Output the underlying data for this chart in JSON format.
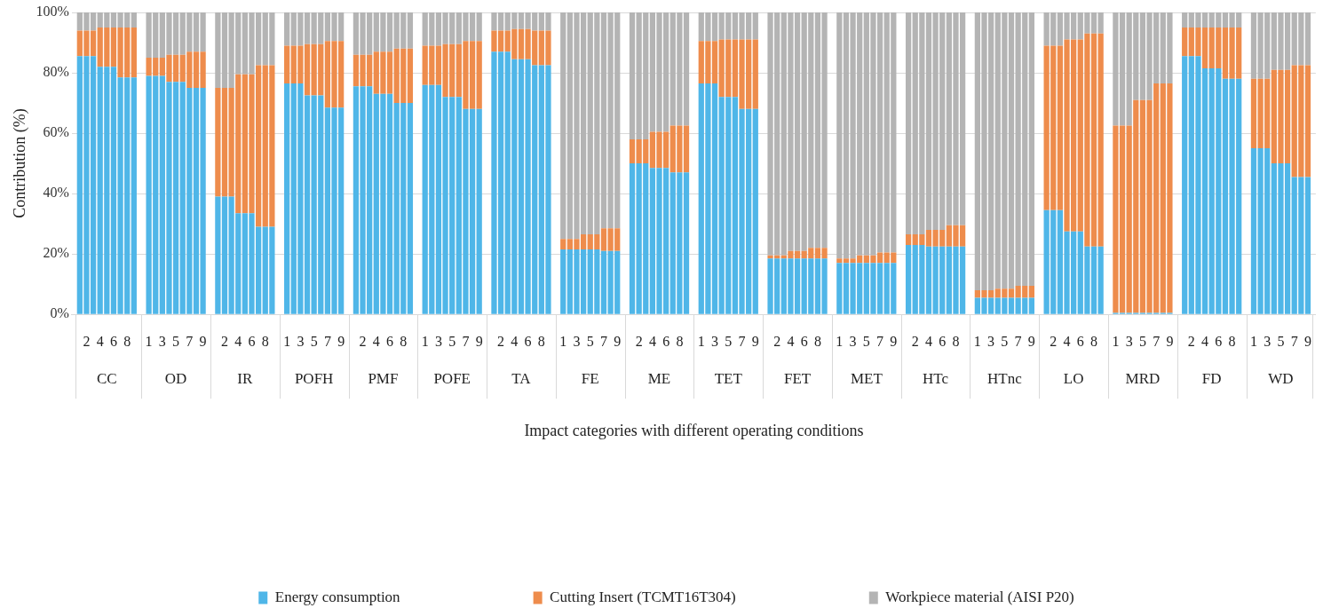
{
  "chart_data": {
    "type": "bar",
    "stacked": true,
    "xlabel": "Impact categories with different operating conditions",
    "ylabel": "Contribution (%)",
    "legend": "bottom",
    "grid": "y",
    "ylim": [
      0,
      100
    ],
    "yticks": [
      {
        "value": 0,
        "label": "0%"
      },
      {
        "value": 20,
        "label": "20%"
      },
      {
        "value": 40,
        "label": "40%"
      },
      {
        "value": 60,
        "label": "60%"
      },
      {
        "value": 80,
        "label": "80%"
      },
      {
        "value": 100,
        "label": "100%"
      }
    ],
    "annotations": [
      "CC",
      "OD",
      "IR",
      "POFH",
      "PMF",
      "POFE",
      "TA",
      "FE",
      "ME",
      "TET",
      "FET",
      "MET",
      "HTc",
      "HTnc",
      "LO",
      "MRD",
      "FD",
      "WD"
    ],
    "categories": [
      null,
      "2",
      null,
      "4",
      null,
      "6",
      null,
      "8",
      null,
      "1",
      null,
      "3",
      null,
      "5",
      null,
      "7",
      null,
      "9",
      null,
      "2",
      null,
      "4",
      null,
      "6",
      null,
      "8",
      null,
      "1",
      null,
      "3",
      null,
      "5",
      null,
      "7",
      null,
      "9",
      null,
      "2",
      null,
      "4",
      null,
      "6",
      null,
      "8",
      null,
      "1",
      null,
      "3",
      null,
      "5",
      null,
      "7",
      null,
      "9",
      null,
      "2",
      null,
      "4",
      null,
      "6",
      null,
      "8",
      null,
      "1",
      null,
      "3",
      null,
      "5",
      null,
      "7",
      null,
      "9",
      null,
      "2",
      null,
      "4",
      null,
      "6",
      null,
      "8",
      null,
      "1",
      null,
      "3",
      null,
      "5",
      null,
      "7",
      null,
      "9",
      null,
      "2",
      null,
      "4",
      null,
      "6",
      null,
      "8",
      null,
      "1",
      null,
      "3",
      null,
      "5",
      null,
      "7",
      null,
      "9",
      null,
      "2",
      null,
      "4",
      null,
      "6",
      null,
      "8",
      null,
      "1",
      null,
      "3",
      null,
      "5",
      null,
      "7",
      null,
      "9",
      null,
      "2",
      null,
      "4",
      null,
      "6",
      null,
      "8",
      null,
      "1",
      null,
      "3",
      null,
      "5",
      null,
      "7",
      null,
      "9",
      null,
      "2",
      null,
      "4",
      null,
      "6",
      null,
      "8",
      null,
      "1",
      null,
      "3",
      null,
      "5",
      null,
      "7",
      null,
      "9"
    ],
    "series": [
      {
        "name": "Energy consumption",
        "color": "#4fb6e8",
        "values": [
          85.5,
          85.5,
          85.5,
          82,
          82,
          82,
          78.5,
          78.5,
          78.5,
          79,
          79,
          79,
          77,
          77,
          77,
          75,
          75,
          75,
          39,
          39,
          39,
          33.5,
          33.5,
          33.5,
          29,
          29,
          29,
          76.5,
          76.5,
          76.5,
          72.5,
          72.5,
          72.5,
          68.5,
          68.5,
          68.5,
          75.5,
          75.5,
          75.5,
          73,
          73,
          73,
          70,
          70,
          70,
          76,
          76,
          76,
          72,
          72,
          72,
          68,
          68,
          68,
          87,
          87,
          87,
          84.5,
          84.5,
          84.5,
          82.5,
          82.5,
          82.5,
          21.5,
          21.5,
          21.5,
          21.5,
          21.5,
          21.5,
          21,
          21,
          21,
          50,
          50,
          50,
          48.5,
          48.5,
          48.5,
          47,
          47,
          47,
          76.5,
          76.5,
          76.5,
          72,
          72,
          72,
          68,
          68,
          68,
          18.5,
          18.5,
          18.5,
          18.5,
          18.5,
          18.5,
          18.5,
          18.5,
          18.5,
          17,
          17,
          17,
          17,
          17,
          17,
          17,
          17,
          17,
          23,
          23,
          23,
          22.5,
          22.5,
          22.5,
          22.5,
          22.5,
          22.5,
          5.5,
          5.5,
          5.5,
          5.5,
          5.5,
          5.5,
          5.5,
          5.5,
          5.5,
          34.5,
          34.5,
          34.5,
          27.5,
          27.5,
          27.5,
          22.5,
          22.5,
          22.5,
          0.5,
          0.5,
          0.5,
          0.5,
          0.5,
          0.5,
          0.5,
          0.5,
          0.5,
          85.5,
          85.5,
          85.5,
          81.5,
          81.5,
          81.5,
          78,
          78,
          78,
          55,
          55,
          55,
          50,
          50,
          50,
          45.5,
          45.5,
          45.5
        ]
      },
      {
        "name": "Cutting Insert (TCMT16T304)",
        "color": "#ee8c4c",
        "values": [
          8.5,
          8.5,
          8.5,
          13,
          13,
          13,
          16.5,
          16.5,
          16.5,
          6,
          6,
          6,
          9,
          9,
          9,
          12,
          12,
          12,
          36,
          36,
          36,
          46,
          46,
          46,
          53.5,
          53.5,
          53.5,
          12.5,
          12.5,
          12.5,
          17,
          17,
          17,
          22,
          22,
          22,
          10.5,
          10.5,
          10.5,
          14,
          14,
          14,
          18,
          18,
          18,
          13,
          13,
          13,
          17.5,
          17.5,
          17.5,
          22.5,
          22.5,
          22.5,
          7,
          7,
          7,
          10,
          10,
          10,
          11.5,
          11.5,
          11.5,
          3.5,
          3.5,
          3.5,
          5,
          5,
          5,
          7.5,
          7.5,
          7.5,
          8,
          8,
          8,
          12,
          12,
          12,
          15.5,
          15.5,
          15.5,
          14,
          14,
          14,
          19,
          19,
          19,
          23,
          23,
          23,
          1,
          1,
          1,
          2.5,
          2.5,
          2.5,
          3.5,
          3.5,
          3.5,
          1.5,
          1.5,
          1.5,
          2.5,
          2.5,
          2.5,
          3.5,
          3.5,
          3.5,
          3.5,
          3.5,
          3.5,
          5.5,
          5.5,
          5.5,
          7,
          7,
          7,
          2.5,
          2.5,
          2.5,
          3,
          3,
          3,
          4,
          4,
          4,
          54.5,
          54.5,
          54.5,
          63.5,
          63.5,
          63.5,
          70.5,
          70.5,
          70.5,
          62,
          62,
          62,
          70.5,
          70.5,
          70.5,
          76,
          76,
          76,
          9.5,
          9.5,
          9.5,
          13.5,
          13.5,
          13.5,
          17,
          17,
          17,
          23,
          23,
          23,
          31,
          31,
          31,
          37,
          37,
          37
        ]
      },
      {
        "name": "Workpiece material (AISI P20)",
        "color": "#b4b4b4",
        "values": [
          6,
          6,
          6,
          5,
          5,
          5,
          5,
          5,
          5,
          15,
          15,
          15,
          14,
          14,
          14,
          13,
          13,
          13,
          25,
          25,
          25,
          20.5,
          20.5,
          20.5,
          17.5,
          17.5,
          17.5,
          11,
          11,
          11,
          10.5,
          10.5,
          10.5,
          9.5,
          9.5,
          9.5,
          14,
          14,
          14,
          13,
          13,
          13,
          12,
          12,
          12,
          11,
          11,
          11,
          10.5,
          10.5,
          10.5,
          9.5,
          9.5,
          9.5,
          6,
          6,
          6,
          5.5,
          5.5,
          5.5,
          6,
          6,
          6,
          75,
          75,
          75,
          73.5,
          73.5,
          73.5,
          71.5,
          71.5,
          71.5,
          42,
          42,
          42,
          39.5,
          39.5,
          39.5,
          37.5,
          37.5,
          37.5,
          9.5,
          9.5,
          9.5,
          9,
          9,
          9,
          9,
          9,
          9,
          80.5,
          80.5,
          80.5,
          79,
          79,
          79,
          78,
          78,
          78,
          81.5,
          81.5,
          81.5,
          80.5,
          80.5,
          80.5,
          79.5,
          79.5,
          79.5,
          73.5,
          73.5,
          73.5,
          72,
          72,
          72,
          70.5,
          70.5,
          70.5,
          92,
          92,
          92,
          91.5,
          91.5,
          91.5,
          90.5,
          90.5,
          90.5,
          11,
          11,
          11,
          9,
          9,
          9,
          7,
          7,
          7,
          37.5,
          37.5,
          37.5,
          29,
          29,
          29,
          23.5,
          23.5,
          23.5,
          5,
          5,
          5,
          5,
          5,
          5,
          5,
          5,
          5,
          22,
          22,
          22,
          19,
          19,
          19,
          17.5,
          17.5,
          17.5
        ]
      }
    ]
  }
}
